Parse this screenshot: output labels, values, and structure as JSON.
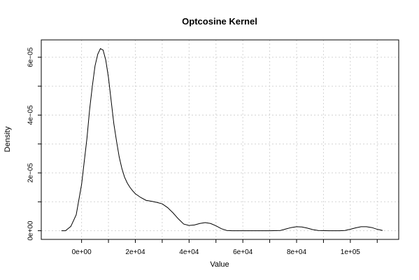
{
  "chart_data": {
    "type": "line",
    "title": "Optcosine Kernel",
    "xlabel": "Value",
    "ylabel": "Density",
    "xlim": [
      -15000,
      118000
    ],
    "ylim": [
      -3e-06,
      6.6e-05
    ],
    "grid": true,
    "xticks": [
      0,
      20000,
      40000,
      60000,
      80000,
      100000
    ],
    "xtick_labels": [
      "0e+00",
      "2e+04",
      "4e+04",
      "6e+04",
      "8e+04",
      "1e+05"
    ],
    "yticks": [
      0,
      2e-05,
      4e-05,
      6e-05
    ],
    "ytick_labels": [
      "0e+00",
      "2e−05",
      "4e−05",
      "6e−05"
    ],
    "series": [
      {
        "x": [
          -7500,
          -6000,
          -4000,
          -2000,
          0,
          2000,
          3000,
          4000,
          5000,
          6000,
          7000,
          8000,
          9000,
          10000,
          11000,
          12000,
          13000,
          14000,
          15000,
          16000,
          17000,
          18000,
          19000,
          20000,
          22000,
          24000,
          26000,
          28000,
          30000,
          32000,
          34000,
          36000,
          38000,
          40000,
          42000,
          44000,
          46000,
          48000,
          50000,
          52000,
          54000,
          56000,
          58000,
          60000,
          65000,
          70000,
          74000,
          76000,
          78000,
          80000,
          82000,
          84000,
          86000,
          88000,
          92000,
          96000,
          98000,
          100000,
          102000,
          104000,
          106000,
          108000,
          110000,
          112000
        ],
        "y": [
          0,
          0,
          1.5e-06,
          5.5e-06,
          1.6e-05,
          3.2e-05,
          4.2e-05,
          5e-05,
          5.7e-05,
          6.1e-05,
          6.3e-05,
          6.25e-05,
          5.9e-05,
          5.3e-05,
          4.5e-05,
          3.7e-05,
          3.1e-05,
          2.55e-05,
          2.15e-05,
          1.85e-05,
          1.65e-05,
          1.5e-05,
          1.38e-05,
          1.28e-05,
          1.15e-05,
          1.05e-05,
          1.02e-05,
          9.8e-06,
          9.3e-06,
          8e-06,
          6.2e-06,
          4.1e-06,
          2.3e-06,
          1.8e-06,
          2e-06,
          2.5e-06,
          2.8e-06,
          2.5e-06,
          1.7e-06,
          7e-07,
          1e-07,
          0,
          0,
          0,
          0,
          0,
          1e-07,
          6e-07,
          1.1e-06,
          1.4e-06,
          1.3e-06,
          9e-07,
          4e-07,
          1e-07,
          0,
          0,
          1e-07,
          5e-07,
          1e-06,
          1.4e-06,
          1.4e-06,
          1.1e-06,
          5e-07,
          1e-07
        ]
      }
    ]
  }
}
